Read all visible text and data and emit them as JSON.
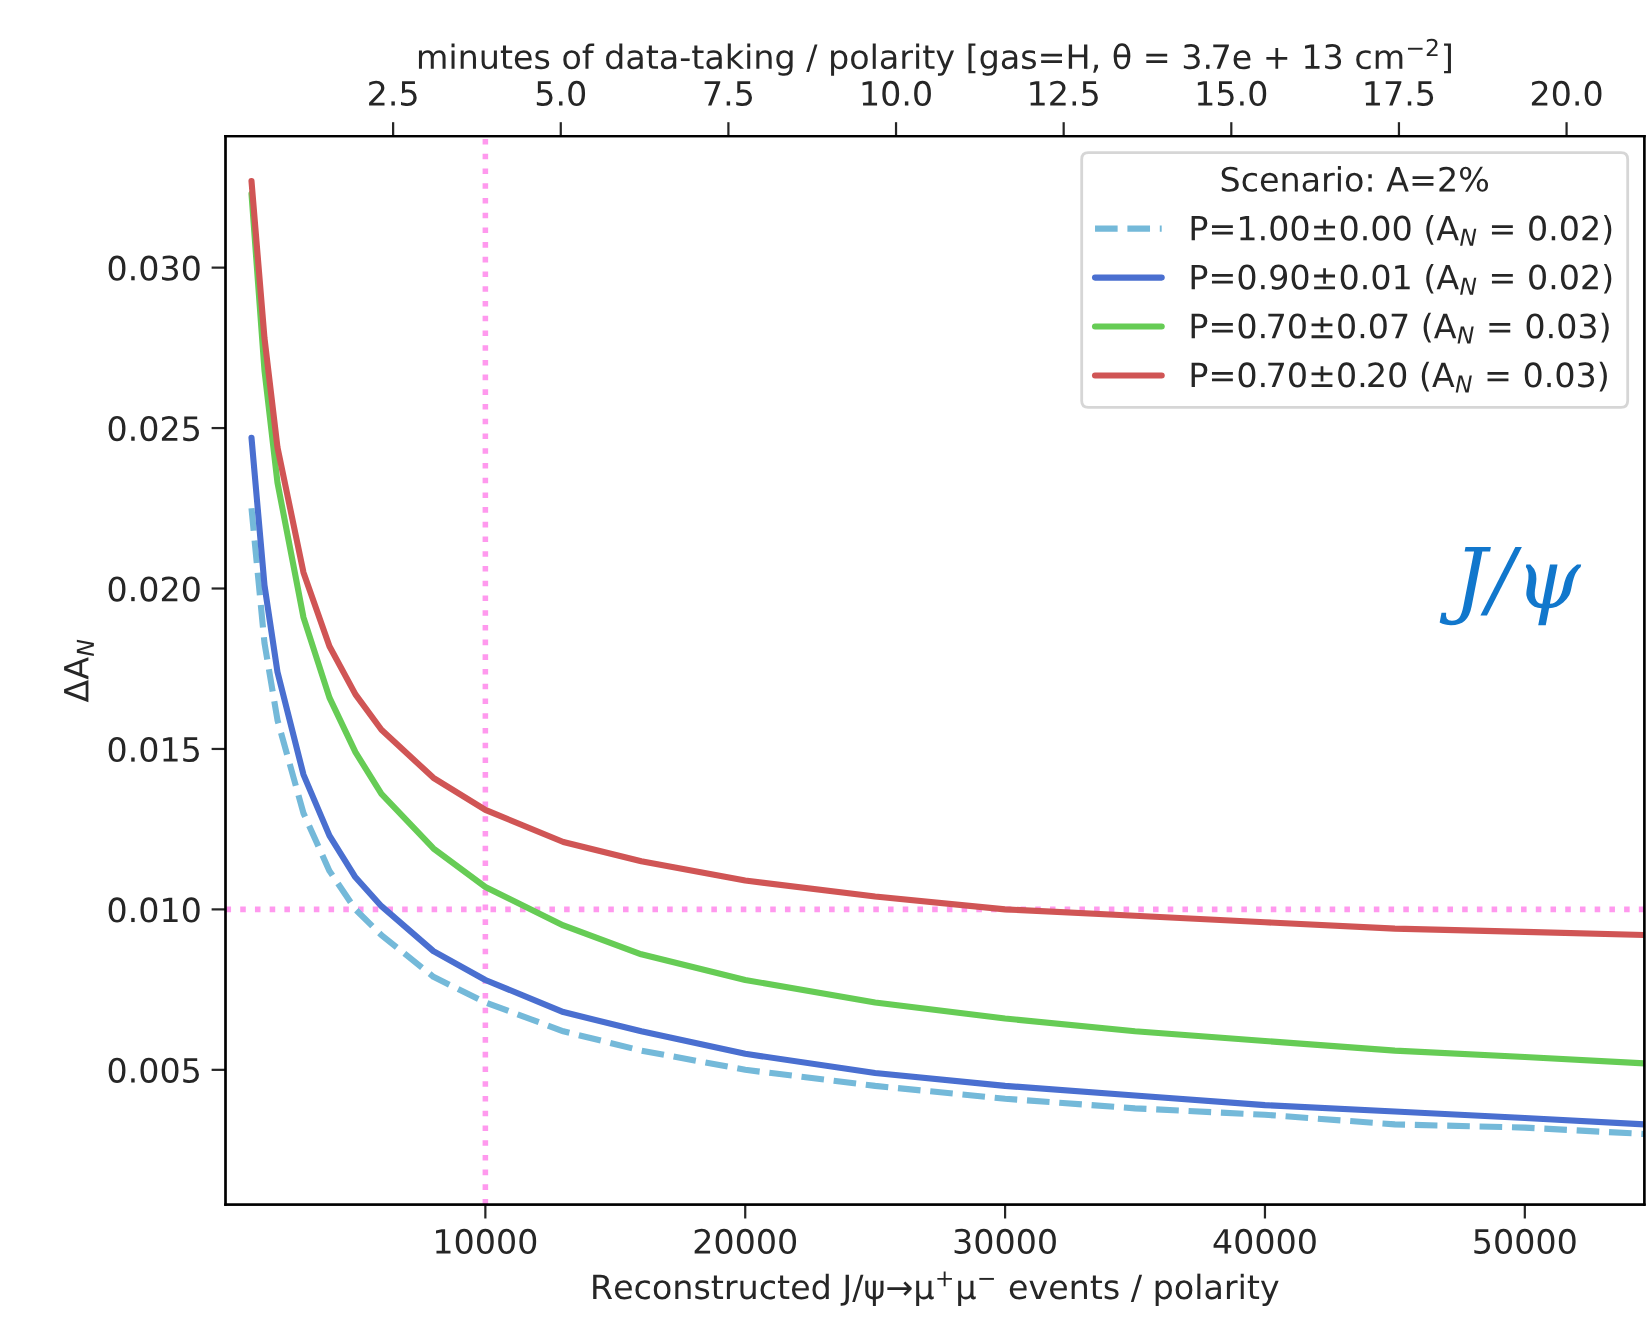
{
  "chart_data": {
    "type": "line",
    "x2label": "minutes of data-taking / polarity [gas=H, θ = 3.7e + 13 cm$^{−2}$]",
    "xlabel": "Reconstructed J/ψ→μ$^{+}$μ$^{−}$ events / polarity",
    "ylabel": "ΔA$_{N}$",
    "legend_title": "Scenario: A=2%",
    "annotations": [
      "J/ψ"
    ],
    "x": [
      1000,
      1500,
      2000,
      3000,
      4000,
      5000,
      6000,
      8000,
      10000,
      13000,
      16000,
      20000,
      25000,
      30000,
      35000,
      40000,
      45000,
      50000,
      54600
    ],
    "series": [
      {
        "name": "P=1.00±0.00 (A$_{N}$ = 0.02)",
        "color": "#74b9d9",
        "line_style": "dashed",
        "values": [
          0.0225,
          0.0183,
          0.0159,
          0.013,
          0.0112,
          0.01,
          0.0092,
          0.0079,
          0.0071,
          0.0062,
          0.0056,
          0.005,
          0.0045,
          0.0041,
          0.0038,
          0.0036,
          0.0033,
          0.0032,
          0.003
        ]
      },
      {
        "name": "P=0.90±0.01 (A$_{N}$ = 0.02)",
        "color": "#4a6fd0",
        "line_style": "solid",
        "values": [
          0.0247,
          0.0201,
          0.0174,
          0.0142,
          0.0123,
          0.011,
          0.0101,
          0.0087,
          0.0078,
          0.0068,
          0.0062,
          0.0055,
          0.0049,
          0.0045,
          0.0042,
          0.0039,
          0.0037,
          0.0035,
          0.0033
        ]
      },
      {
        "name": "P=0.70±0.07 (A$_{N}$ = 0.03)",
        "color": "#66cc55",
        "line_style": "solid",
        "values": [
          0.0323,
          0.0268,
          0.0233,
          0.0191,
          0.0166,
          0.0149,
          0.0136,
          0.0119,
          0.0107,
          0.0095,
          0.0086,
          0.0078,
          0.0071,
          0.0066,
          0.0062,
          0.0059,
          0.0056,
          0.0054,
          0.0052
        ]
      },
      {
        "name": "P=0.70±0.20 (A$_{N}$ = 0.03)",
        "color": "#d05555",
        "line_style": "solid",
        "values": [
          0.0327,
          0.0278,
          0.0244,
          0.0205,
          0.0182,
          0.0167,
          0.0156,
          0.0141,
          0.0131,
          0.0121,
          0.0115,
          0.0109,
          0.0104,
          0.01,
          0.0098,
          0.0096,
          0.0094,
          0.0093,
          0.0092
        ]
      }
    ],
    "xlim": [
      0,
      54600
    ],
    "xticks": [
      10000,
      20000,
      30000,
      40000,
      50000
    ],
    "ylim": [
      0.0008,
      0.0341
    ],
    "yticks": [
      {
        "value": 0.005,
        "label": "0.005"
      },
      {
        "value": 0.01,
        "label": "0.010"
      },
      {
        "value": 0.015,
        "label": "0.015"
      },
      {
        "value": 0.02,
        "label": "0.020"
      },
      {
        "value": 0.025,
        "label": "0.025"
      },
      {
        "value": 0.03,
        "label": "0.030"
      }
    ],
    "x2lim": [
      0,
      21.16
    ],
    "x2ticks": [
      {
        "value": 2.5,
        "label": "2.5"
      },
      {
        "value": 5.0,
        "label": "5.0"
      },
      {
        "value": 7.5,
        "label": "7.5"
      },
      {
        "value": 10.0,
        "label": "10.0"
      },
      {
        "value": 12.5,
        "label": "12.5"
      },
      {
        "value": 15.0,
        "label": "15.0"
      },
      {
        "value": 17.5,
        "label": "17.5"
      },
      {
        "value": 20.0,
        "label": "20.0"
      }
    ],
    "ref_lines": [
      {
        "axis": "x",
        "value": 10000,
        "color": "#ff99ee",
        "line_style": "dotted"
      },
      {
        "axis": "y",
        "value": 0.01,
        "color": "#ff99ee",
        "line_style": "dotted"
      }
    ],
    "grid": false,
    "legend": "top right"
  }
}
